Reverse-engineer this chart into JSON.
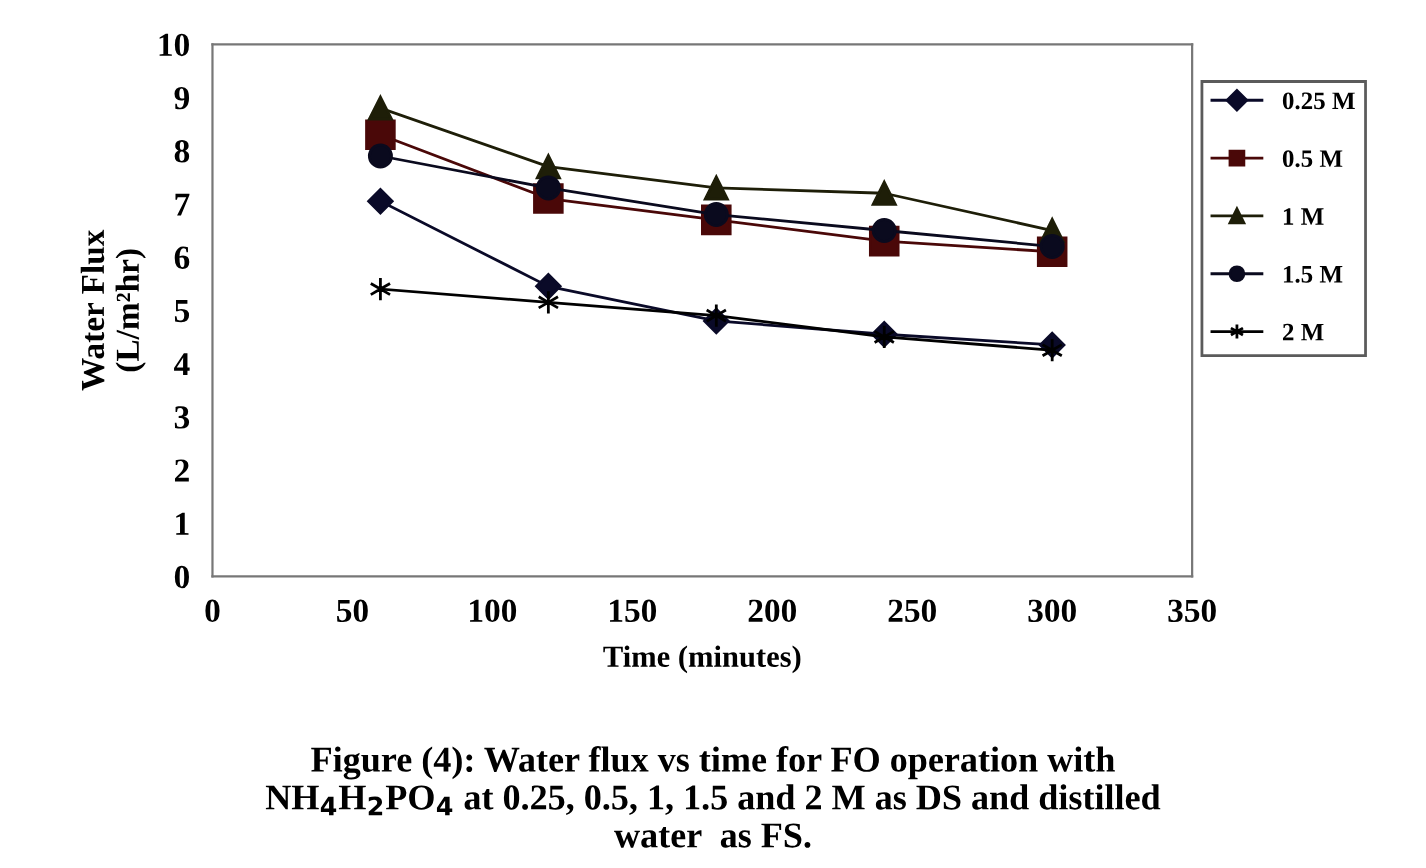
{
  "chart_data": {
    "type": "line",
    "xlabel": "Time (minutes)",
    "ylabel": "Water Flux\n(L/m²hr)",
    "x": [
      60,
      120,
      180,
      240,
      300
    ],
    "series": [
      {
        "name": "0.25 M",
        "color": "#0a0a28",
        "marker": "diamond",
        "values": [
          7.05,
          5.45,
          4.8,
          4.55,
          4.35
        ]
      },
      {
        "name": "0.5 M",
        "color": "#4a0808",
        "marker": "square",
        "values": [
          8.3,
          7.1,
          6.7,
          6.3,
          6.1
        ]
      },
      {
        "name": "1 M",
        "color": "#1e1e08",
        "marker": "triangle",
        "values": [
          8.8,
          7.7,
          7.3,
          7.2,
          6.5
        ]
      },
      {
        "name": "1.5 M",
        "color": "#0a0a1e",
        "marker": "circle",
        "values": [
          7.9,
          7.3,
          6.8,
          6.5,
          6.2
        ]
      },
      {
        "name": "2 M",
        "color": "#000000",
        "marker": "cross",
        "values": [
          5.4,
          5.15,
          4.9,
          4.5,
          4.25
        ]
      }
    ],
    "xlim": [
      0,
      350
    ],
    "xticks": [
      0,
      50,
      100,
      150,
      200,
      250,
      300,
      350
    ],
    "ylim": [
      0,
      10
    ],
    "yticks": [
      0,
      1,
      2,
      3,
      4,
      5,
      6,
      7,
      8,
      9,
      10
    ],
    "grid": false,
    "legend": "right",
    "line_style": "solid",
    "annotations": [
      "Figure (4): Water flux vs time for FO operation with\nNH$_{4}$H$_{2}$PO$_{4}$ at 0.25, 0.5, 1, 1.5 and 2 M as DS and distilled\nwater  as FS."
    ]
  }
}
